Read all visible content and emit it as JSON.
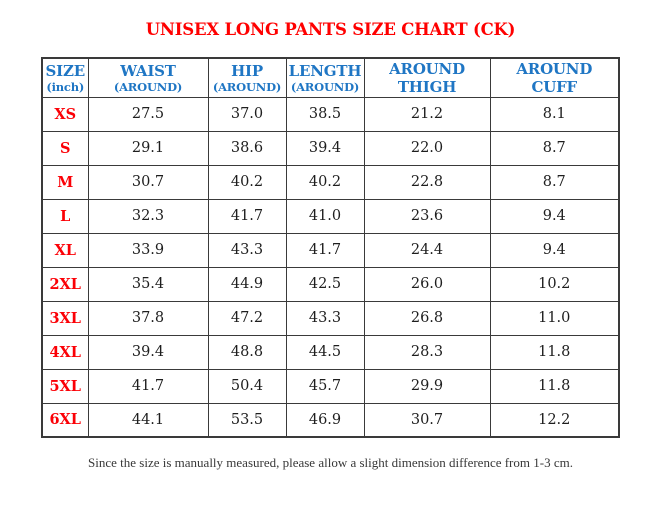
{
  "title": "UNISEX LONG PANTS SIZE CHART (CK)",
  "footer_note": "Since the size is manually measured, please allow a slight dimension difference from 1-3 cm.",
  "colors": {
    "title-red": "#FF0000",
    "header-blue": "#1F76C4",
    "size-red": "#FB0006",
    "data-text": "#1E1E1E",
    "border": "#3A3A3A",
    "footer-text": "#383838",
    "page-bg": "#FFFFFF"
  },
  "table": {
    "header": [
      {
        "line1": "SIZE",
        "line2": "(inch)"
      },
      {
        "line1": "WAIST",
        "line2": "(AROUND)"
      },
      {
        "line1": "HIP",
        "line2": "(AROUND)"
      },
      {
        "line1": "LENGTH",
        "line2": "(AROUND)"
      },
      {
        "line1": "AROUND",
        "line2": "THIGH"
      },
      {
        "line1": "AROUND",
        "line2": "CUFF"
      }
    ],
    "rows": [
      {
        "size": "XS",
        "values": [
          "27.5",
          "37.0",
          "38.5",
          "21.2",
          "8.1"
        ]
      },
      {
        "size": "S",
        "values": [
          "29.1",
          "38.6",
          "39.4",
          "22.0",
          "8.7"
        ]
      },
      {
        "size": "M",
        "values": [
          "30.7",
          "40.2",
          "40.2",
          "22.8",
          "8.7"
        ]
      },
      {
        "size": "L",
        "values": [
          "32.3",
          "41.7",
          "41.0",
          "23.6",
          "9.4"
        ]
      },
      {
        "size": "XL",
        "values": [
          "33.9",
          "43.3",
          "41.7",
          "24.4",
          "9.4"
        ]
      },
      {
        "size": "2XL",
        "values": [
          "35.4",
          "44.9",
          "42.5",
          "26.0",
          "10.2"
        ]
      },
      {
        "size": "3XL",
        "values": [
          "37.8",
          "47.2",
          "43.3",
          "26.8",
          "11.0"
        ]
      },
      {
        "size": "4XL",
        "values": [
          "39.4",
          "48.8",
          "44.5",
          "28.3",
          "11.8"
        ]
      },
      {
        "size": "5XL",
        "values": [
          "41.7",
          "50.4",
          "45.7",
          "29.9",
          "11.8"
        ]
      },
      {
        "size": "6XL",
        "values": [
          "44.1",
          "53.5",
          "46.9",
          "30.7",
          "12.2"
        ]
      }
    ]
  }
}
